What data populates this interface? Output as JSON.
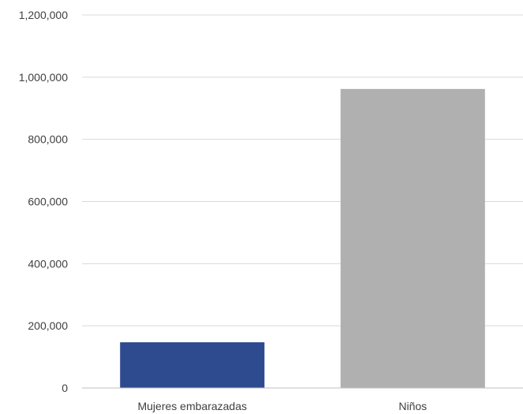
{
  "chart_data": {
    "type": "bar",
    "title": "",
    "xlabel": "",
    "ylabel": "",
    "categories": [
      "Mujeres embarazadas",
      "Niños"
    ],
    "values": [
      147000,
      962000
    ],
    "bar_colors": [
      "#2f4b8f",
      "#b0b0b0"
    ],
    "ylim": [
      0,
      1200000
    ],
    "yticks": [
      0,
      200000,
      400000,
      600000,
      800000,
      1000000,
      1200000
    ],
    "ytick_labels": [
      "0",
      "200,000",
      "400,000",
      "600,000",
      "800,000",
      "1,000,000",
      "1,200,000"
    ],
    "grid": true,
    "legend": "none"
  }
}
